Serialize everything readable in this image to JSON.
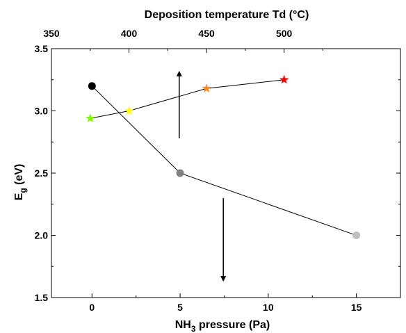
{
  "chart_data": {
    "type": "scatter",
    "xlabel_main": "NH",
    "xlabel_sub": "3",
    "xlabel_rest": " pressure (Pa)",
    "ylabel_main": "E",
    "ylabel_sub": "g",
    "ylabel_rest": " (eV)",
    "x2label": "Deposition temperature Td (°C)",
    "xlim": [
      -2.3,
      17.5
    ],
    "ylim": [
      1.5,
      3.5
    ],
    "x2lim": [
      350,
      575
    ],
    "xticks": [
      0,
      5,
      10,
      15
    ],
    "yticks": [
      1.5,
      2.0,
      2.5,
      3.0,
      3.5
    ],
    "x2ticks": [
      350,
      400,
      450,
      500
    ],
    "series": [
      {
        "axis": "bottom",
        "marker": "circle",
        "points": [
          {
            "x": 0,
            "y": 3.2,
            "color": "#000000"
          },
          {
            "x": 5,
            "y": 2.5,
            "color": "#808080"
          },
          {
            "x": 15,
            "y": 2.0,
            "color": "#c0c0c0"
          }
        ]
      },
      {
        "axis": "top",
        "marker": "star",
        "points": [
          {
            "x": 375,
            "y": 2.94,
            "color": "#7cfc00"
          },
          {
            "x": 400,
            "y": 3.0,
            "color": "#ffff00"
          },
          {
            "x": 450,
            "y": 3.18,
            "color": "#ff8c1a"
          },
          {
            "x": 500,
            "y": 3.25,
            "color": "#ff0000"
          }
        ]
      }
    ],
    "arrows": [
      {
        "axis": "bottom",
        "x": 4.95,
        "y_from": 2.78,
        "y_to": 3.3
      },
      {
        "axis": "bottom",
        "x": 7.45,
        "y_from": 2.3,
        "y_to": 1.65
      }
    ]
  }
}
